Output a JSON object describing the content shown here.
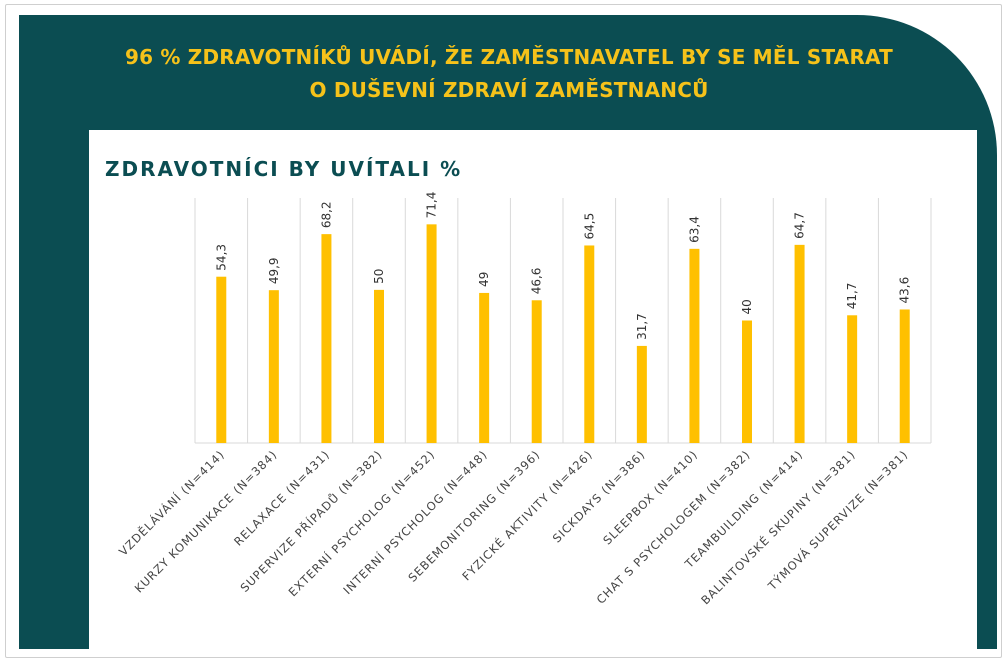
{
  "headline": {
    "line1": "96 % ZDRAVOTNÍKŮ UVÁDÍ, ŽE ZAMĚSTNAVATEL BY SE MĚL STARAT",
    "line2": "O DUŠEVNÍ ZDRAVÍ ZAMĚSTNANCŮ"
  },
  "colors": {
    "banner": "#0b4d52",
    "headline_text": "#f6c21a",
    "bar": "#ffc000",
    "gridline": "#d9d9d9"
  },
  "chart_data": {
    "type": "bar",
    "title": "ZDRAVOTNÍCI BY UVÍTALI %",
    "categories": [
      "VZDĚLÁVÁNÍ (N=414)",
      "KURZY KOMUNIKACE (N=384)",
      "RELAXACE (N=431)",
      "SUPERVIZE PŘÍPADŮ (N=382)",
      "EXTERNÍ PSYCHOLOG (N=452)",
      "INTERNÍ PSYCHOLOG (N=448)",
      "SEBEMONITORING (N=396)",
      "FYZICKÉ AKTIVITY (N=426)",
      "SICKDAYS (N=386)",
      "SLEEPBOX (N=410)",
      "CHAT S PSYCHOLOGEM (N=382)",
      "TEAMBUILDING (N=414)",
      "BALINTOVSKÉ SKUPINY (N=381)",
      "TÝMOVÁ SUPERVIZE (N=381)"
    ],
    "values": [
      54.3,
      49.9,
      68.2,
      50,
      71.4,
      49,
      46.6,
      64.5,
      31.7,
      63.4,
      40,
      64.7,
      41.7,
      43.6
    ],
    "value_labels": [
      "54,3",
      "49,9",
      "68,2",
      "50",
      "71,4",
      "49",
      "46,6",
      "64,5",
      "31,7",
      "63,4",
      "40",
      "64,7",
      "41,7",
      "43,6"
    ],
    "ylim": [
      0,
      80
    ],
    "grid": "vertical",
    "legend": "none"
  }
}
